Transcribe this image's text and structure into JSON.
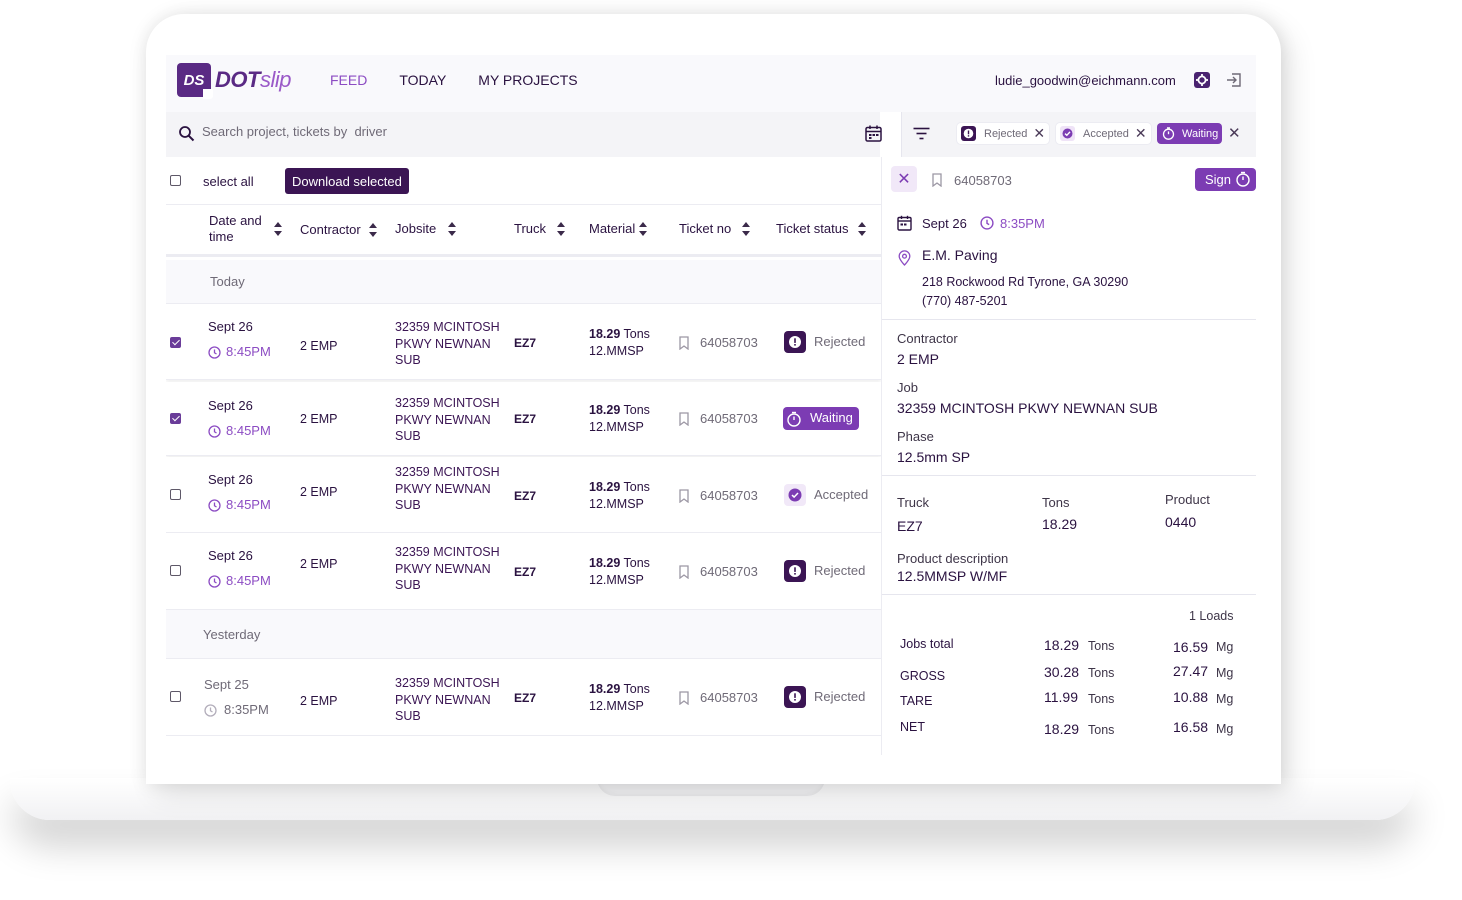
{
  "header": {
    "logo_text_main": "DOT",
    "logo_text_accent": "slip",
    "logo_mark": "DS",
    "nav": [
      "FEED",
      "TODAY",
      "MY PROJECTS"
    ],
    "user_email": "ludie_goodwin@eichmann.com",
    "icons": [
      "gear-icon",
      "logout-icon"
    ]
  },
  "search": {
    "placeholder": "Search project, tickets by  driver"
  },
  "filters": {
    "chips": [
      {
        "label": "Rejected",
        "icon": "exclamation-icon"
      },
      {
        "label": "Accepted",
        "icon": "check-icon"
      },
      {
        "label": "Waiting",
        "icon": "timer-icon"
      }
    ]
  },
  "toolbar": {
    "select_all_label": "select all",
    "download_label": "Download selected"
  },
  "table": {
    "columns": [
      "Date and time",
      "Contractor",
      "Jobsite",
      "Truck",
      "Material",
      "Ticket no",
      "Ticket status"
    ],
    "groups": [
      {
        "label": "Today",
        "rows": [
          {
            "checked": true,
            "date": "Sept 26",
            "time": "8:45PM",
            "contractor": "2 EMP",
            "jobsite": "32359 MCINTOSH PKWY NEWNAN SUB",
            "truck": "EZ7",
            "tons": "18.29",
            "tons_unit": "Tons",
            "mix": "12.MMSP",
            "ticket": "64058703",
            "status": "Rejected"
          },
          {
            "checked": true,
            "date": "Sept 26",
            "time": "8:45PM",
            "contractor": "2 EMP",
            "jobsite": "32359 MCINTOSH PKWY NEWNAN SUB",
            "truck": "EZ7",
            "tons": "18.29",
            "tons_unit": "Tons",
            "mix": "12.MMSP",
            "ticket": "64058703",
            "status": "Waiting"
          },
          {
            "checked": false,
            "date": "Sept 26",
            "time": "8:45PM",
            "contractor": "2 EMP",
            "jobsite": "32359 MCINTOSH PKWY NEWNAN SUB",
            "truck": "EZ7",
            "tons": "18.29",
            "tons_unit": "Tons",
            "mix": "12.MMSP",
            "ticket": "64058703",
            "status": "Accepted"
          },
          {
            "checked": false,
            "date": "Sept 26",
            "time": "8:45PM",
            "contractor": "2 EMP",
            "jobsite": "32359 MCINTOSH PKWY NEWNAN SUB",
            "truck": "EZ7",
            "tons": "18.29",
            "tons_unit": "Tons",
            "mix": "12.MMSP",
            "ticket": "64058703",
            "status": "Rejected"
          }
        ]
      },
      {
        "label": "Yesterday",
        "rows": [
          {
            "checked": false,
            "date": "Sept 25",
            "time": "8:35PM",
            "contractor": "2 EMP",
            "jobsite": "32359 MCINTOSH PKWY NEWNAN SUB",
            "truck": "EZ7",
            "tons": "18.29",
            "tons_unit": "Tons",
            "mix": "12.MMSP",
            "ticket": "64058703",
            "status": "Rejected"
          }
        ]
      }
    ]
  },
  "detail": {
    "ticket": "64058703",
    "sign_label": "Sign",
    "date": "Sept 26",
    "time": "8:35PM",
    "company": "E.M. Paving",
    "address": "218 Rockwood Rd Tyrone, GA 30290",
    "phone": "(770) 487-5201",
    "contractor_label": "Contractor",
    "contractor": "2 EMP",
    "job_label": "Job",
    "job": "32359 MCINTOSH PKWY NEWNAN SUB",
    "phase_label": "Phase",
    "phase": "12.5mm SP",
    "truck_label": "Truck",
    "truck": "EZ7",
    "tons_label": "Tons",
    "tons": "18.29",
    "product_label": "Product",
    "product": "0440",
    "product_desc_label": "Product description",
    "product_desc": "12.5MMSP W/MF",
    "loads": "1 Loads",
    "summary": [
      {
        "label": "Jobs total",
        "tons": "18.29",
        "tons_unit": "Tons",
        "mg": "16.59",
        "mg_unit": "Mg"
      },
      {
        "label": "GROSS",
        "tons": "30.28",
        "tons_unit": "Tons",
        "mg": "27.47",
        "mg_unit": "Mg"
      },
      {
        "label": "TARE",
        "tons": "11.99",
        "tons_unit": "Tons",
        "mg": "10.88",
        "mg_unit": "Mg"
      },
      {
        "label": "NET",
        "tons": "18.29",
        "tons_unit": "Tons",
        "mg": "16.58",
        "mg_unit": "Mg"
      }
    ]
  },
  "colors": {
    "brand": "#5a2a84",
    "accent": "#8c4cc3",
    "dark": "#3b1554"
  }
}
